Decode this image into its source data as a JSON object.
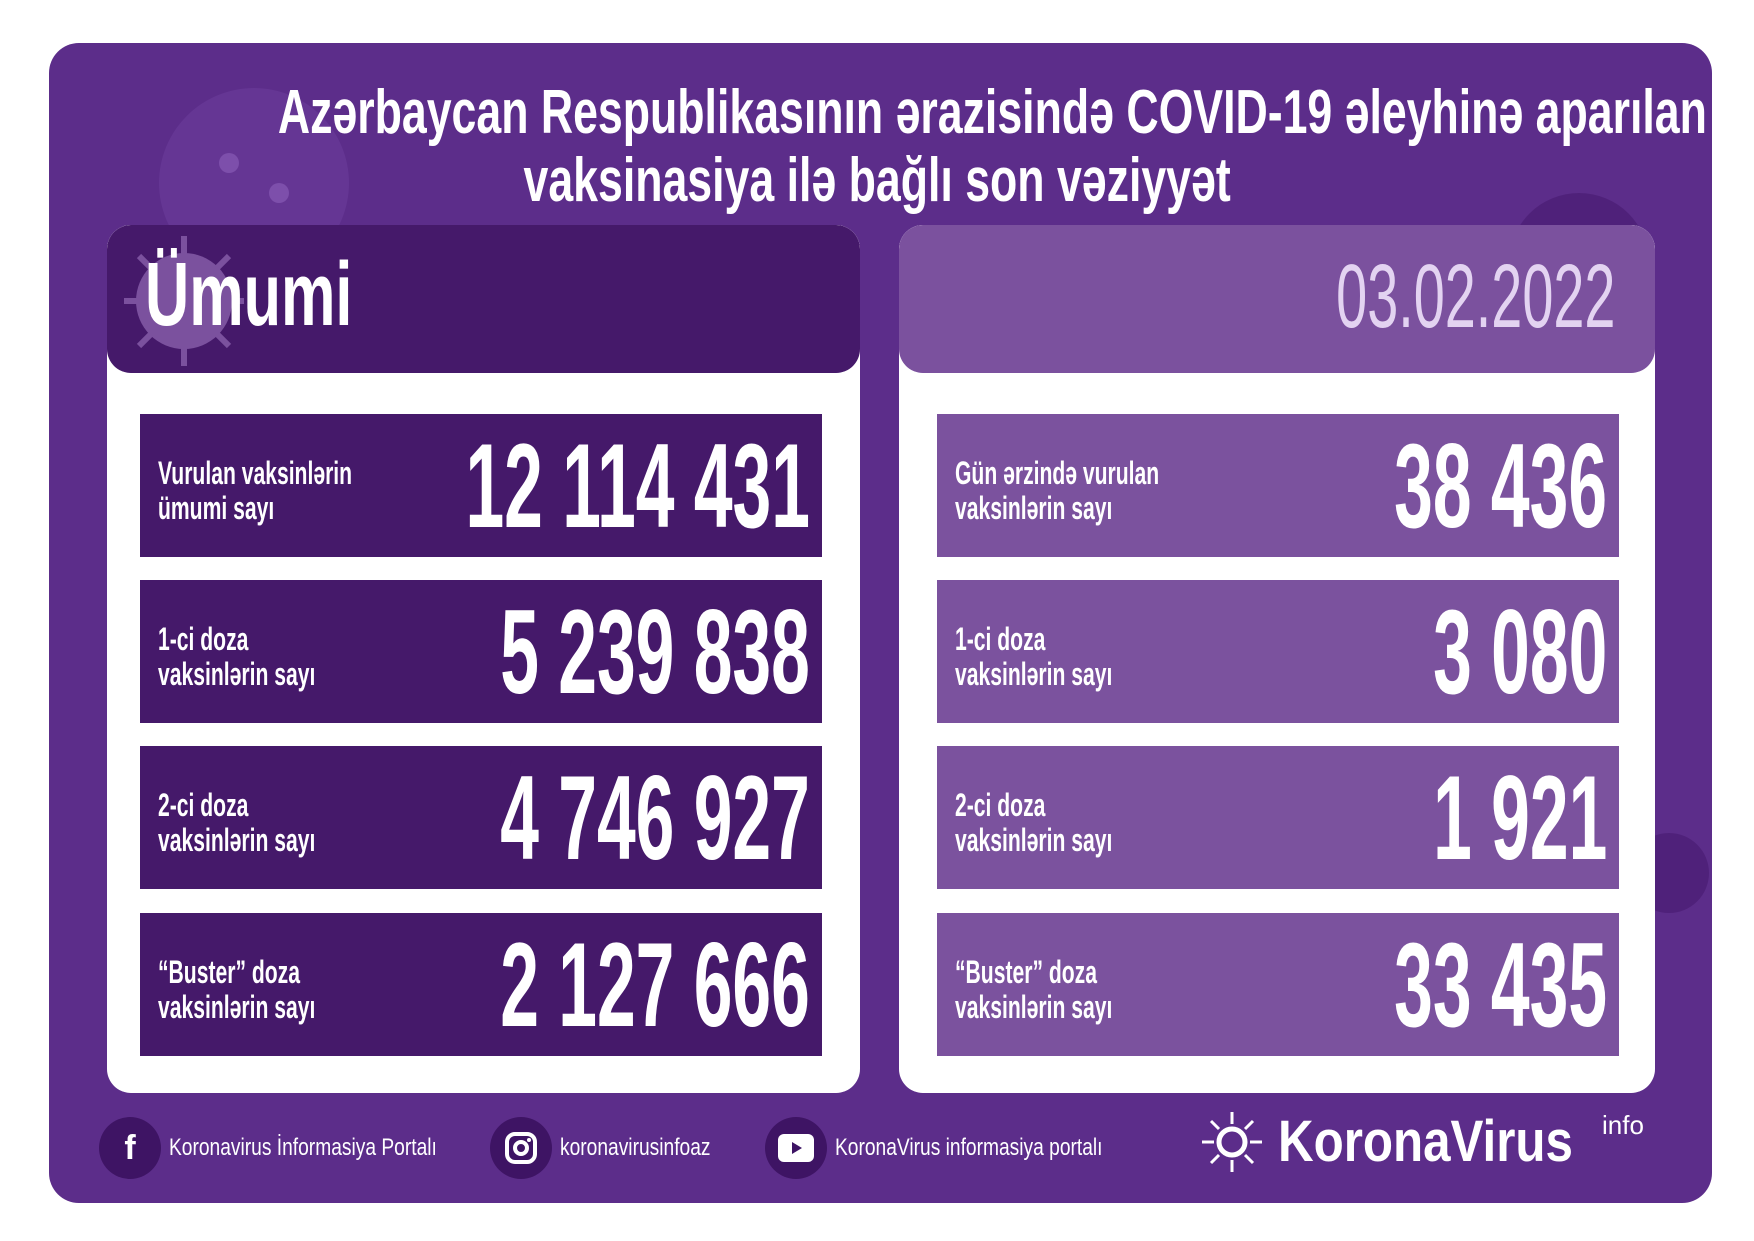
{
  "title": {
    "line1": "Azərbaycan Respublikasının ərazisində COVID-19 əleyhinə aparılan",
    "line2": "vaksinasiya ilə bağlı son vəziyyət"
  },
  "left_panel": {
    "heading": "Ümumi",
    "rows": [
      {
        "label1": "Vurulan vaksinlərin",
        "label2": "ümumi sayı",
        "value": "12 114 431"
      },
      {
        "label1": "1-ci doza",
        "label2": "vaksinlərin sayı",
        "value": "5 239 838"
      },
      {
        "label1": "2-ci doza",
        "label2": "vaksinlərin sayı",
        "value": "4 746 927"
      },
      {
        "label1": "“Buster” doza",
        "label2": "vaksinlərin sayı",
        "value": "2 127 666"
      }
    ]
  },
  "right_panel": {
    "date": "03.02.2022",
    "rows": [
      {
        "label1": "Gün ərzində vurulan",
        "label2": "vaksinlərin sayı",
        "value": "38 436"
      },
      {
        "label1": "1-ci doza",
        "label2": "vaksinlərin sayı",
        "value": "3 080"
      },
      {
        "label1": "2-ci doza",
        "label2": "vaksinlərin sayı",
        "value": "1 921"
      },
      {
        "label1": "“Buster” doza",
        "label2": "vaksinlərin sayı",
        "value": "33 435"
      }
    ]
  },
  "footer": {
    "facebook": {
      "icon": "facebook-icon",
      "text": "Koronavirus İnformasiya Portalı"
    },
    "instagram": {
      "icon": "instagram-icon",
      "text": "koronavirusinfoaz"
    },
    "youtube": {
      "icon": "youtube-icon",
      "text": "KoronaVirus informasiya portalı"
    },
    "logo": {
      "text": "KoronaVirus",
      "sup": "info"
    }
  },
  "colors": {
    "background": "#5c2d8a",
    "dark_panel": "#45196a",
    "light_panel": "#7b519e",
    "date": "#e3d3f1"
  }
}
